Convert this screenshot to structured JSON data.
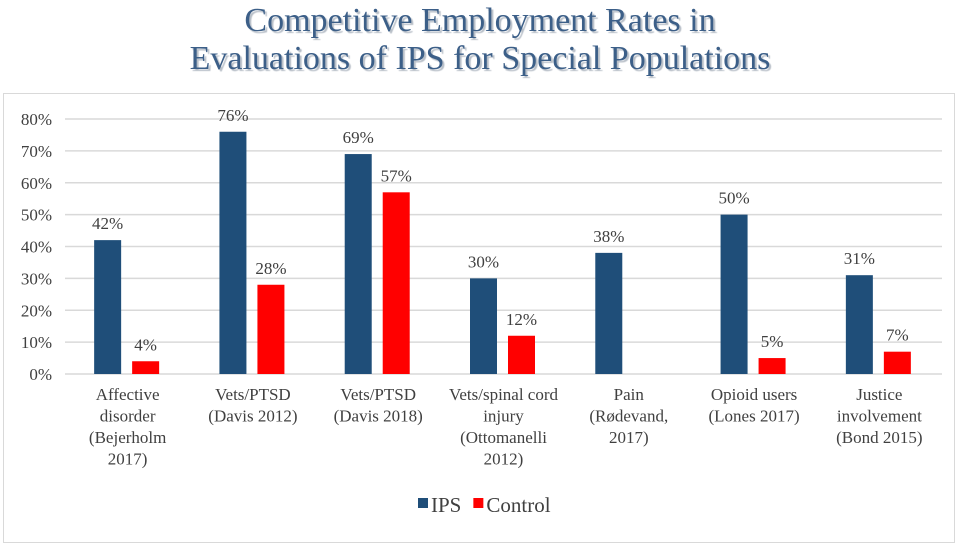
{
  "title_lines": [
    "Competitive Employment Rates in",
    "Evaluations of IPS for Special Populations"
  ],
  "chart_data": {
    "type": "bar",
    "title": "Competitive Employment Rates in Evaluations of IPS for Special Populations",
    "categories": [
      [
        "Affective",
        "disorder",
        "(Bejerholm",
        "2017)"
      ],
      [
        "Vets/PTSD",
        "(Davis 2012)"
      ],
      [
        "Vets/PTSD",
        "(Davis 2018)"
      ],
      [
        "Vets/spinal cord",
        "injury",
        "(Ottomanelli",
        "2012)"
      ],
      [
        "Pain",
        "(Rødevand,",
        "2017)"
      ],
      [
        "Opioid users",
        "(Lones 2017)"
      ],
      [
        "Justice",
        "involvement",
        "(Bond 2015)"
      ]
    ],
    "series": [
      {
        "name": "IPS",
        "color": "#1f4e79",
        "values": [
          42,
          76,
          69,
          30,
          38,
          50,
          31
        ]
      },
      {
        "name": "Control",
        "color": "#ff0000",
        "values": [
          4,
          28,
          57,
          12,
          null,
          5,
          7
        ]
      }
    ],
    "ylim": [
      0,
      80
    ],
    "yticks": [
      "0%",
      "10%",
      "20%",
      "30%",
      "40%",
      "50%",
      "60%",
      "70%",
      "80%"
    ],
    "grid": true,
    "legend": "bottom"
  }
}
